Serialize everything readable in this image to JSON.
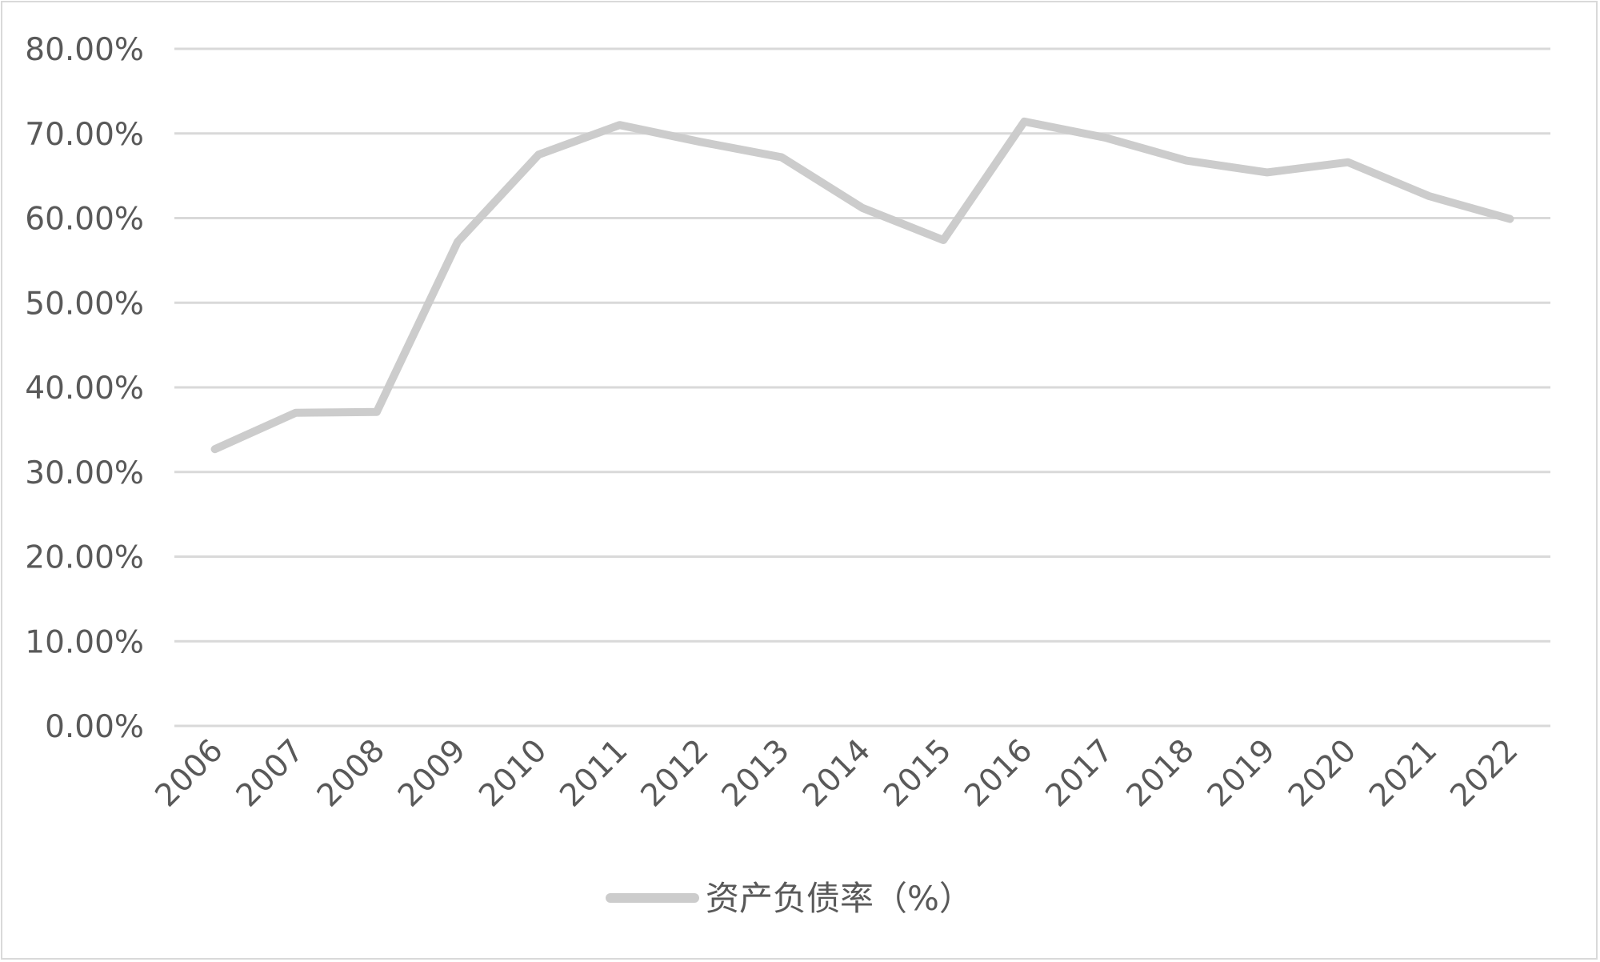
{
  "chart_data": {
    "type": "line",
    "title": "",
    "xlabel": "",
    "ylabel": "",
    "categories": [
      "2006",
      "2007",
      "2008",
      "2009",
      "2010",
      "2011",
      "2012",
      "2013",
      "2014",
      "2015",
      "2016",
      "2017",
      "2018",
      "2019",
      "2020",
      "2021",
      "2022"
    ],
    "series": [
      {
        "name": "资产负债率（%）",
        "values": [
          32.7,
          37.0,
          37.1,
          57.2,
          67.5,
          71.0,
          69.0,
          67.2,
          61.2,
          57.4,
          71.4,
          69.5,
          66.8,
          65.4,
          66.6,
          62.6,
          59.9
        ],
        "color": "#cccccc"
      }
    ],
    "ylim": [
      0,
      80
    ],
    "yticks": [
      0,
      10,
      20,
      30,
      40,
      50,
      60,
      70,
      80
    ],
    "ytick_labels": [
      "0.00%",
      "10.00%",
      "20.00%",
      "30.00%",
      "40.00%",
      "50.00%",
      "60.00%",
      "70.00%",
      "80.00%"
    ],
    "grid": true,
    "grid_color": "#d9d9d9",
    "text_color": "#595959",
    "legend_position": "bottom"
  }
}
